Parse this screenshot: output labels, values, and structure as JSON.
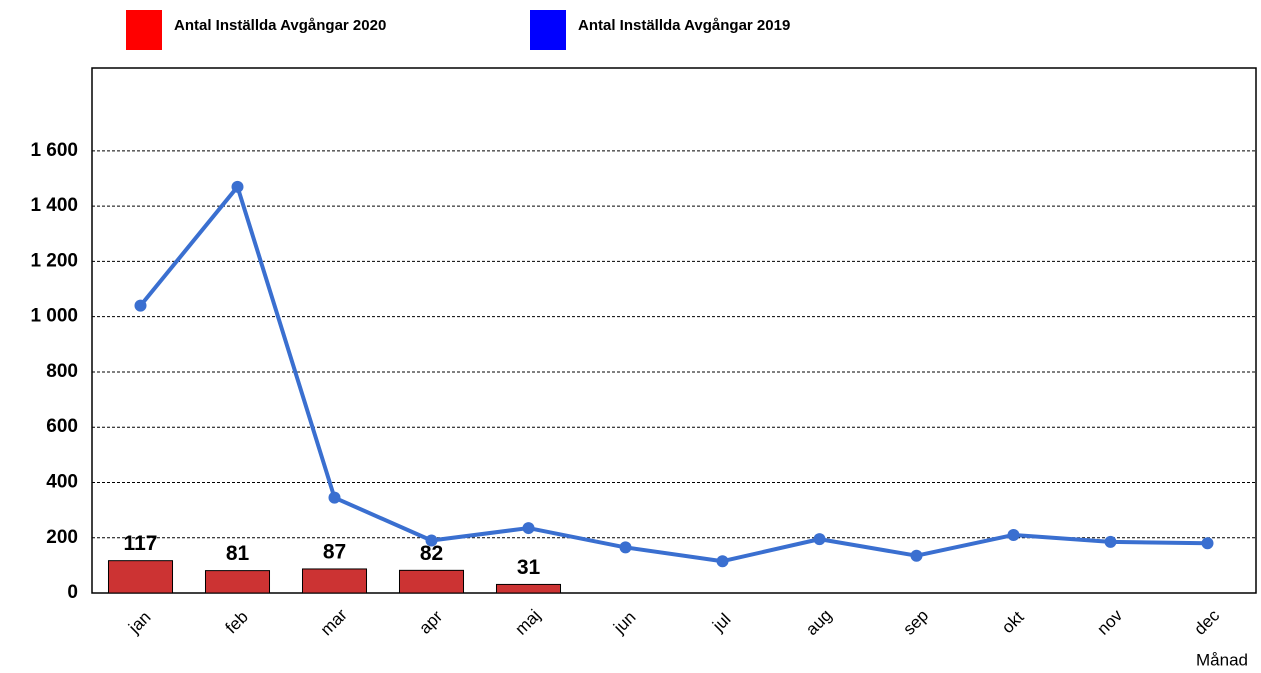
{
  "chart_data": {
    "type": "combo",
    "x_label": "Månad",
    "categories": [
      "jan",
      "feb",
      "mar",
      "apr",
      "maj",
      "jun",
      "jul",
      "aug",
      "sep",
      "okt",
      "nov",
      "dec"
    ],
    "series": [
      {
        "name": "Antal Inställda Avgångar 2020",
        "type": "bar",
        "color": "#cc3333",
        "legend_color": "#ff0000",
        "values": [
          117,
          81,
          87,
          82,
          31,
          null,
          null,
          null,
          null,
          null,
          null,
          null
        ]
      },
      {
        "name": "Antal Inställda Avgångar 2019",
        "type": "line",
        "color": "#3a6fd0",
        "legend_color": "#0000ff",
        "values": [
          1040,
          1470,
          345,
          190,
          235,
          165,
          115,
          195,
          135,
          210,
          185,
          180
        ]
      }
    ],
    "ylim": [
      0,
      1900
    ],
    "yticks": [
      0,
      200,
      400,
      600,
      800,
      {
        "value": 1000,
        "label": "1 000"
      },
      {
        "value": 1200,
        "label": "1 200"
      },
      {
        "value": 1400,
        "label": "1 400"
      },
      {
        "value": 1600,
        "label": "1 600"
      }
    ],
    "grid": true
  }
}
